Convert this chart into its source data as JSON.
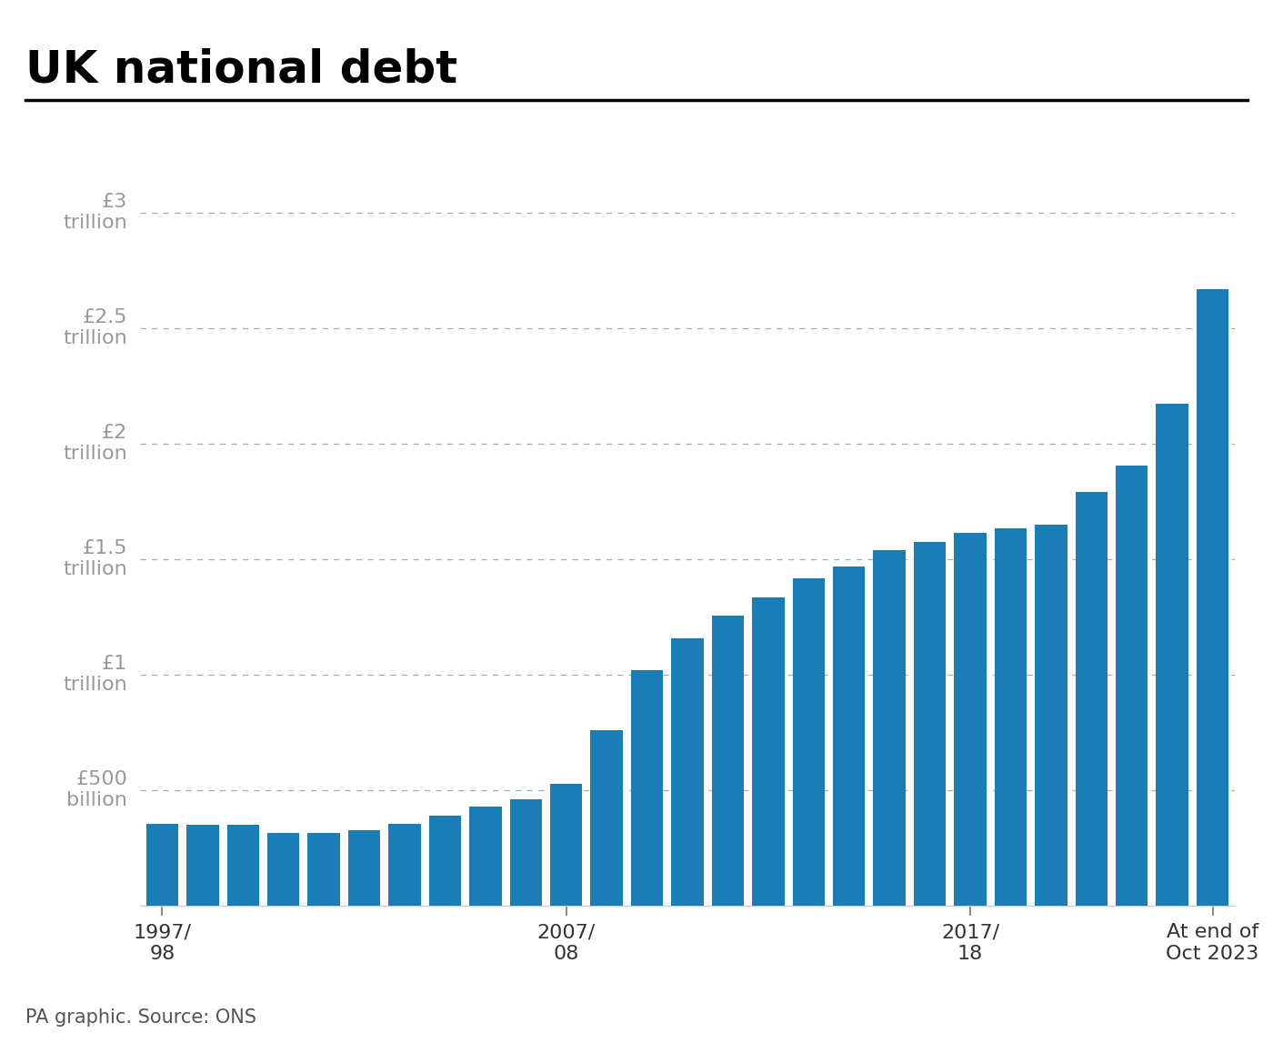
{
  "title": "UK national debt",
  "source": "PA graphic. Source: ONS",
  "bar_color": "#1a7db5",
  "background_color": "#ffffff",
  "debt_values": [
    352,
    351,
    349,
    316,
    316,
    327,
    355,
    390,
    428,
    462,
    527,
    760,
    1018,
    1157,
    1257,
    1335,
    1415,
    1468,
    1538,
    1576,
    1612,
    1633,
    1651,
    1791,
    1903,
    2172,
    2670
  ],
  "tick_indices": [
    0,
    10,
    20,
    26
  ],
  "tick_labels": [
    "1997/\n98",
    "2007/\n08",
    "2017/\n18",
    "At end of\nOct 2023"
  ],
  "ytick_vals": [
    0,
    500,
    1000,
    1500,
    2000,
    2500,
    3000
  ],
  "ytick_labels": [
    "",
    "£500\nbillion",
    "£1\ntrillion",
    "£1.5\ntrillion",
    "£2\ntrillion",
    "£2.5\ntrillion",
    "£3\ntrillion"
  ],
  "ylim": [
    0,
    3100
  ],
  "title_fontsize": 36,
  "tick_fontsize": 16,
  "source_fontsize": 15,
  "bar_width": 0.8,
  "title_color": "#000000",
  "tick_color": "#999999",
  "xtick_color": "#333333",
  "source_color": "#555555",
  "grid_color": "#aaaaaa",
  "separator_color": "#000000"
}
